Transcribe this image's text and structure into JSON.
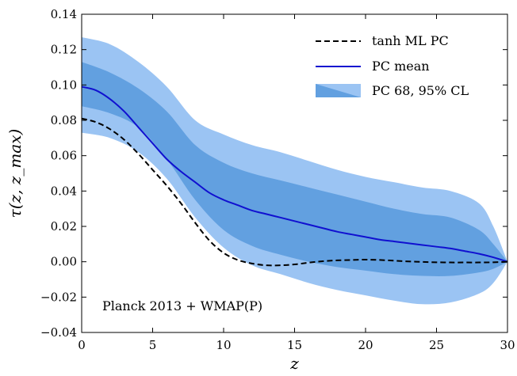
{
  "chart_data": {
    "type": "line",
    "xlabel": "z",
    "ylabel": "τ(z, z_max)",
    "xlim": [
      0,
      30
    ],
    "ylim": [
      -0.04,
      0.14
    ],
    "x_ticks": [
      0,
      5,
      10,
      15,
      20,
      25,
      30
    ],
    "x_tick_labels": [
      "0",
      "5",
      "10",
      "15",
      "20",
      "25",
      "30"
    ],
    "y_ticks": [
      -0.04,
      -0.02,
      0.0,
      0.02,
      0.04,
      0.06,
      0.08,
      0.1,
      0.12,
      0.14
    ],
    "y_tick_labels": [
      "−0.04",
      "−0.02",
      "0.00",
      "0.02",
      "0.04",
      "0.06",
      "0.08",
      "0.10",
      "0.12",
      "0.14"
    ],
    "grid": false,
    "legend_position": "top-right",
    "annotation": "Planck 2013 + WMAP(P)",
    "colors": {
      "band95": "#9bc4f3",
      "band68": "#62a0e0",
      "mean": "#1010d0",
      "ml": "#000000"
    },
    "series": [
      {
        "name": "tanh ML PC",
        "style": "dashed",
        "x": [
          0,
          1,
          2,
          3,
          4,
          5,
          6,
          7,
          8,
          9,
          10,
          11,
          12,
          13,
          14,
          15,
          16,
          17,
          18,
          19,
          20,
          21,
          22,
          23,
          24,
          25,
          26,
          27,
          28,
          29,
          30
        ],
        "y": [
          0.081,
          0.079,
          0.075,
          0.069,
          0.061,
          0.052,
          0.043,
          0.033,
          0.022,
          0.012,
          0.005,
          0.001,
          -0.001,
          -0.002,
          -0.002,
          -0.0015,
          -0.0005,
          0.0003,
          0.0008,
          0.001,
          0.0012,
          0.001,
          0.0006,
          0.0002,
          -0.0001,
          -0.0003,
          -0.0004,
          -0.0004,
          -0.0004,
          -0.0003,
          0.0
        ]
      },
      {
        "name": "PC mean",
        "style": "solid",
        "x": [
          0,
          1,
          2,
          3,
          4,
          5,
          6,
          7,
          8,
          9,
          10,
          11,
          12,
          13,
          14,
          15,
          16,
          17,
          18,
          19,
          20,
          21,
          22,
          23,
          24,
          25,
          26,
          27,
          28,
          29,
          30
        ],
        "y": [
          0.099,
          0.097,
          0.092,
          0.085,
          0.076,
          0.067,
          0.058,
          0.051,
          0.045,
          0.039,
          0.035,
          0.032,
          0.029,
          0.027,
          0.025,
          0.023,
          0.021,
          0.019,
          0.017,
          0.0155,
          0.014,
          0.0125,
          0.0115,
          0.0105,
          0.0095,
          0.0085,
          0.0075,
          0.006,
          0.0045,
          0.0025,
          0.0
        ]
      }
    ],
    "bands": {
      "name": "PC 68, 95% CL",
      "x": [
        0,
        2,
        4,
        6,
        8,
        10,
        12,
        14,
        16,
        18,
        20,
        22,
        24,
        26,
        28,
        29,
        30
      ],
      "upper95": [
        0.127,
        0.123,
        0.113,
        0.099,
        0.08,
        0.072,
        0.066,
        0.062,
        0.057,
        0.052,
        0.048,
        0.045,
        0.042,
        0.04,
        0.033,
        0.02,
        0.0
      ],
      "upper68": [
        0.113,
        0.107,
        0.098,
        0.085,
        0.066,
        0.056,
        0.05,
        0.046,
        0.042,
        0.038,
        0.034,
        0.03,
        0.027,
        0.025,
        0.018,
        0.01,
        0.0
      ],
      "lower68": [
        0.088,
        0.084,
        0.076,
        0.058,
        0.035,
        0.018,
        0.009,
        0.004,
        0.0,
        -0.003,
        -0.005,
        -0.007,
        -0.008,
        -0.008,
        -0.006,
        -0.004,
        0.0
      ],
      "lower95": [
        0.073,
        0.07,
        0.062,
        0.047,
        0.025,
        0.008,
        -0.002,
        -0.007,
        -0.012,
        -0.016,
        -0.019,
        -0.022,
        -0.024,
        -0.023,
        -0.018,
        -0.012,
        0.0
      ]
    }
  }
}
